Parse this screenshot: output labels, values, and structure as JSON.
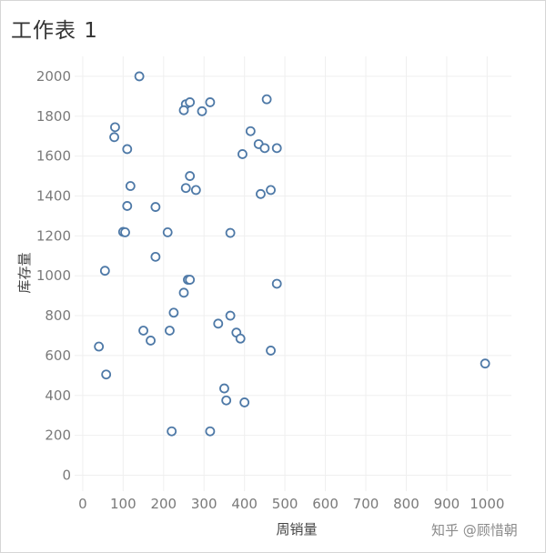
{
  "sheet": {
    "title": "工作表 1"
  },
  "watermark": "知乎 @顾惜朝",
  "chart_data": {
    "type": "scatter",
    "title": "",
    "xlabel": "周销量",
    "ylabel": "库存量",
    "xlim": [
      -20,
      1060
    ],
    "ylim": [
      -80,
      2100
    ],
    "xticks": [
      0,
      100,
      200,
      300,
      400,
      500,
      600,
      700,
      800,
      900,
      1000
    ],
    "yticks": [
      0,
      200,
      400,
      600,
      800,
      1000,
      1200,
      1400,
      1600,
      1800,
      2000
    ],
    "grid": true,
    "marker": "hollow-circle",
    "marker_color": "#4e79a7",
    "series": [
      {
        "points": [
          [
            140,
            2000
          ],
          [
            255,
            1860
          ],
          [
            265,
            1870
          ],
          [
            315,
            1870
          ],
          [
            455,
            1885
          ],
          [
            250,
            1830
          ],
          [
            295,
            1825
          ],
          [
            80,
            1745
          ],
          [
            415,
            1725
          ],
          [
            78,
            1695
          ],
          [
            435,
            1660
          ],
          [
            450,
            1640
          ],
          [
            480,
            1640
          ],
          [
            110,
            1635
          ],
          [
            395,
            1610
          ],
          [
            265,
            1500
          ],
          [
            118,
            1450
          ],
          [
            255,
            1440
          ],
          [
            280,
            1430
          ],
          [
            465,
            1430
          ],
          [
            440,
            1410
          ],
          [
            110,
            1350
          ],
          [
            180,
            1345
          ],
          [
            100,
            1220
          ],
          [
            105,
            1218
          ],
          [
            210,
            1218
          ],
          [
            365,
            1215
          ],
          [
            180,
            1095
          ],
          [
            55,
            1025
          ],
          [
            260,
            980
          ],
          [
            265,
            980
          ],
          [
            480,
            960
          ],
          [
            250,
            915
          ],
          [
            225,
            815
          ],
          [
            365,
            800
          ],
          [
            335,
            760
          ],
          [
            150,
            725
          ],
          [
            215,
            725
          ],
          [
            380,
            715
          ],
          [
            168,
            675
          ],
          [
            390,
            685
          ],
          [
            40,
            645
          ],
          [
            465,
            625
          ],
          [
            995,
            560
          ],
          [
            58,
            505
          ],
          [
            350,
            435
          ],
          [
            355,
            375
          ],
          [
            400,
            365
          ],
          [
            220,
            220
          ],
          [
            315,
            220
          ]
        ]
      }
    ]
  }
}
